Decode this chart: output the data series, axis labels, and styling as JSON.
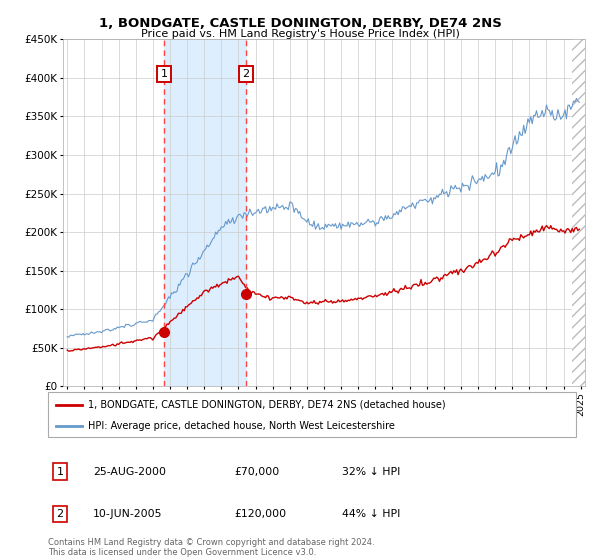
{
  "title1": "1, BONDGATE, CASTLE DONINGTON, DERBY, DE74 2NS",
  "title2": "Price paid vs. HM Land Registry's House Price Index (HPI)",
  "legend_line1": "1, BONDGATE, CASTLE DONINGTON, DERBY, DE74 2NS (detached house)",
  "legend_line2": "HPI: Average price, detached house, North West Leicestershire",
  "annotation1_date": "25-AUG-2000",
  "annotation1_price": "£70,000",
  "annotation1_hpi": "32% ↓ HPI",
  "annotation2_date": "10-JUN-2005",
  "annotation2_price": "£120,000",
  "annotation2_hpi": "44% ↓ HPI",
  "footer": "Contains HM Land Registry data © Crown copyright and database right 2024.\nThis data is licensed under the Open Government Licence v3.0.",
  "red_color": "#cc0000",
  "blue_color": "#6699cc",
  "shading_color": "#ddeeff",
  "grid_color": "#cccccc",
  "box_color": "#cc0000",
  "dashed_color": "#ff4444",
  "ylim": [
    0,
    450000
  ],
  "ytick_vals": [
    0,
    50000,
    100000,
    150000,
    200000,
    250000,
    300000,
    350000,
    400000,
    450000
  ],
  "ytick_labels": [
    "£0",
    "£50K",
    "£100K",
    "£150K",
    "£200K",
    "£250K",
    "£300K",
    "£350K",
    "£400K",
    "£450K"
  ],
  "xmin": 1994.75,
  "xmax": 2025.25,
  "sale1_year": 2000.646,
  "sale1_price": 70000,
  "sale2_year": 2005.44,
  "sale2_price": 120000,
  "hatch_start": 2024.5
}
